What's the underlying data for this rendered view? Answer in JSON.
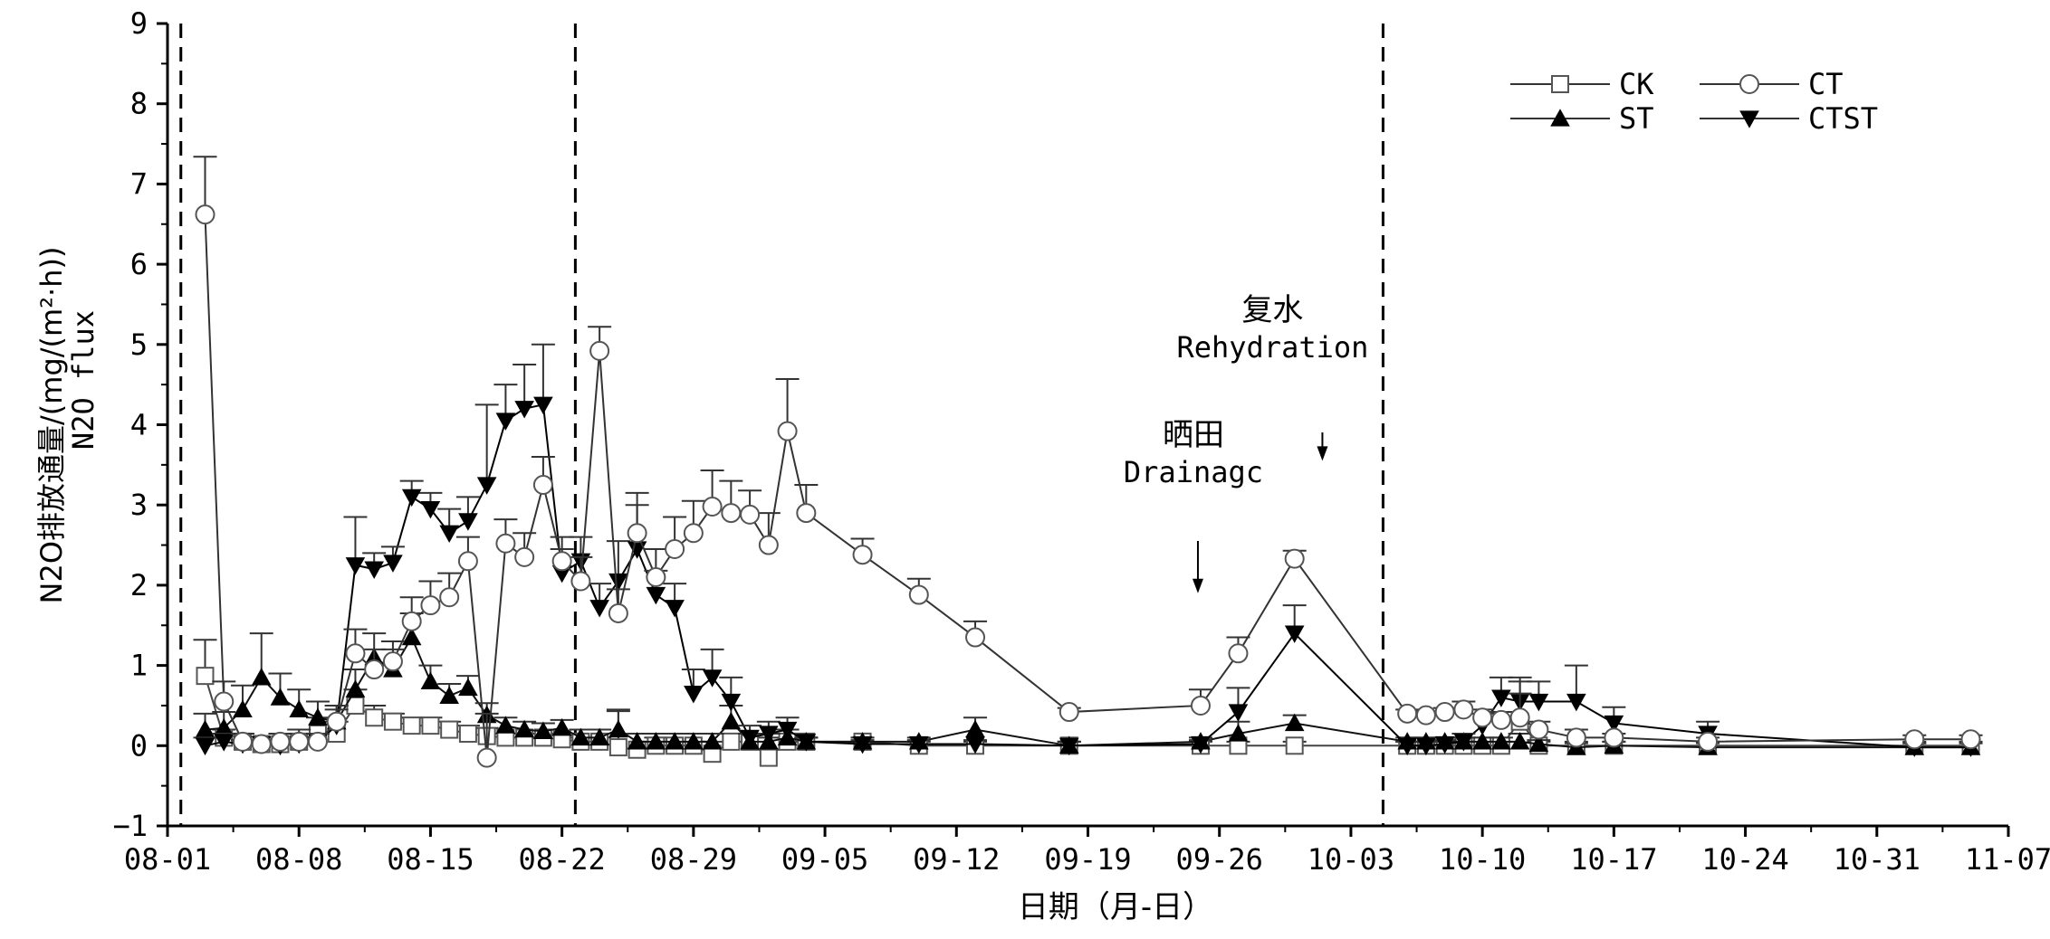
{
  "chart_data": {
    "type": "line",
    "xlabel": "日期（月-日）",
    "ylabel": "N2O排放通量/(mg/(m²·h))",
    "ylabel_en": "N2O flux",
    "xlim": [
      "08-01",
      "11-07"
    ],
    "ylim": [
      -1,
      9
    ],
    "x_ticks": [
      "08-01",
      "08-08",
      "08-15",
      "08-22",
      "08-29",
      "09-05",
      "09-12",
      "09-19",
      "09-26",
      "10-03",
      "10-10",
      "10-17",
      "10-24",
      "10-31",
      "11-07"
    ],
    "y_ticks": [
      -1,
      0,
      1,
      2,
      3,
      4,
      5,
      6,
      7,
      8,
      9
    ],
    "grid": false,
    "legend_position": "top-right",
    "vlines": [
      "08-02",
      "08-23",
      "10-05"
    ],
    "annotations": [
      {
        "text_cn": "晒田",
        "text_en": "Drainagc",
        "arrow_x": "09-25",
        "arrow_y": 1.9
      },
      {
        "text_cn": "复水",
        "text_en": "Rehydration",
        "arrow_x": "10-01",
        "arrow_y": 3.55
      }
    ],
    "series": [
      {
        "name": "CK",
        "marker": "square-open",
        "points": [
          [
            "08-03",
            0.87,
            0.45
          ],
          [
            "08-04",
            0.1,
            0.1
          ],
          [
            "08-05",
            0.05,
            0.1
          ],
          [
            "08-06",
            0.02,
            0.05
          ],
          [
            "08-07",
            0.02,
            0.05
          ],
          [
            "08-08",
            0.05,
            0.1
          ],
          [
            "08-09",
            0.15,
            0.2
          ],
          [
            "08-10",
            0.15,
            0.15
          ],
          [
            "08-11",
            0.5,
            0.2
          ],
          [
            "08-12",
            0.35,
            0.15
          ],
          [
            "08-13",
            0.3,
            0.1
          ],
          [
            "08-14",
            0.25,
            0.1
          ],
          [
            "08-15",
            0.25,
            0.1
          ],
          [
            "08-16",
            0.2,
            0.1
          ],
          [
            "08-17",
            0.15,
            0.1
          ],
          [
            "08-18",
            0.12,
            0.1
          ],
          [
            "08-19",
            0.1,
            0.05
          ],
          [
            "08-20",
            0.1,
            0.05
          ],
          [
            "08-21",
            0.1,
            0.05
          ],
          [
            "08-22",
            0.08,
            0.05
          ],
          [
            "08-23",
            0.05,
            0.05
          ],
          [
            "08-24",
            0.05,
            0.05
          ],
          [
            "08-25",
            -0.02,
            0.45
          ],
          [
            "08-26",
            -0.05,
            0.2
          ],
          [
            "08-27",
            0.0,
            0.1
          ],
          [
            "08-28",
            0.0,
            0.05
          ],
          [
            "08-29",
            0.0,
            0.05
          ],
          [
            "08-30",
            -0.1,
            0.15
          ],
          [
            "08-31",
            0.05,
            0.1
          ],
          [
            "09-01",
            0.05,
            0.1
          ],
          [
            "09-02",
            -0.15,
            0.25
          ],
          [
            "09-03",
            0.05,
            0.1
          ],
          [
            "09-04",
            0.05,
            0.05
          ],
          [
            "09-07",
            0.05,
            0.05
          ],
          [
            "09-10",
            0.0,
            0.05
          ],
          [
            "09-13",
            0.0,
            0.05
          ],
          [
            "09-18",
            0.0,
            0.05
          ],
          [
            "09-25",
            0.0,
            0.05
          ],
          [
            "09-27",
            0.0,
            0.05
          ],
          [
            "09-30",
            0.0,
            0.05
          ],
          [
            "10-06",
            0.0,
            0.05
          ],
          [
            "10-07",
            0.0,
            0.05
          ],
          [
            "10-08",
            0.0,
            0.05
          ],
          [
            "10-09",
            0.0,
            0.05
          ],
          [
            "10-10",
            0.0,
            0.05
          ],
          [
            "10-11",
            0.0,
            0.05
          ],
          [
            "10-12",
            0.3,
            0.5
          ],
          [
            "10-13",
            0.0,
            0.05
          ],
          [
            "10-15",
            0.0,
            0.05
          ],
          [
            "10-17",
            0.0,
            0.05
          ],
          [
            "10-22",
            0.0,
            0.05
          ],
          [
            "11-02",
            0.0,
            0.05
          ],
          [
            "11-05",
            0.0,
            0.05
          ]
        ]
      },
      {
        "name": "CT",
        "marker": "circle-open",
        "points": [
          [
            "08-03",
            6.62,
            0.72
          ],
          [
            "08-04",
            0.55,
            0.25
          ],
          [
            "08-05",
            0.05,
            0.1
          ],
          [
            "08-06",
            0.02,
            0.05
          ],
          [
            "08-07",
            0.05,
            0.1
          ],
          [
            "08-08",
            0.05,
            0.15
          ],
          [
            "08-09",
            0.05,
            0.1
          ],
          [
            "08-10",
            0.3,
            0.2
          ],
          [
            "08-11",
            1.15,
            0.3
          ],
          [
            "08-12",
            0.95,
            0.25
          ],
          [
            "08-13",
            1.05,
            0.25
          ],
          [
            "08-14",
            1.55,
            0.3
          ],
          [
            "08-15",
            1.75,
            0.3
          ],
          [
            "08-16",
            1.85,
            0.3
          ],
          [
            "08-17",
            2.3,
            0.3
          ],
          [
            "08-18",
            -0.15,
            0.55
          ],
          [
            "08-19",
            2.52,
            0.3
          ],
          [
            "08-20",
            2.35,
            0.3
          ],
          [
            "08-21",
            3.25,
            0.35
          ],
          [
            "08-22",
            2.3,
            0.3
          ],
          [
            "08-23",
            2.05,
            0.3
          ],
          [
            "08-24",
            4.92,
            0.3
          ],
          [
            "08-25",
            1.65,
            0.3
          ],
          [
            "08-26",
            2.65,
            0.5
          ],
          [
            "08-27",
            2.1,
            0.35
          ],
          [
            "08-28",
            2.45,
            0.4
          ],
          [
            "08-29",
            2.65,
            0.4
          ],
          [
            "08-30",
            2.98,
            0.45
          ],
          [
            "08-31",
            2.9,
            0.4
          ],
          [
            "09-01",
            2.88,
            0.3
          ],
          [
            "09-02",
            2.5,
            0.4
          ],
          [
            "09-03",
            3.92,
            0.65
          ],
          [
            "09-04",
            2.9,
            0.35
          ],
          [
            "09-07",
            2.38,
            0.2
          ],
          [
            "09-10",
            1.88,
            0.2
          ],
          [
            "09-13",
            1.35,
            0.2
          ],
          [
            "09-18",
            0.42,
            0.05
          ],
          [
            "09-25",
            0.5,
            0.2
          ],
          [
            "09-27",
            1.15,
            0.2
          ],
          [
            "09-30",
            2.33,
            0.1
          ],
          [
            "10-06",
            0.4,
            0.05
          ],
          [
            "10-07",
            0.38,
            0.05
          ],
          [
            "10-08",
            0.42,
            0.05
          ],
          [
            "10-09",
            0.45,
            0.1
          ],
          [
            "10-10",
            0.35,
            0.1
          ],
          [
            "10-11",
            0.32,
            0.1
          ],
          [
            "10-12",
            0.35,
            0.3
          ],
          [
            "10-13",
            0.2,
            0.1
          ],
          [
            "10-15",
            0.1,
            0.1
          ],
          [
            "10-17",
            0.1,
            0.05
          ],
          [
            "10-22",
            0.05,
            0.05
          ],
          [
            "11-02",
            0.08,
            0.05
          ],
          [
            "11-05",
            0.08,
            0.05
          ]
        ]
      },
      {
        "name": "ST",
        "marker": "triangle-up-filled",
        "points": [
          [
            "08-03",
            0.2,
            0.2
          ],
          [
            "08-04",
            0.22,
            0.2
          ],
          [
            "08-05",
            0.45,
            0.3
          ],
          [
            "08-06",
            0.85,
            0.55
          ],
          [
            "08-07",
            0.6,
            0.3
          ],
          [
            "08-08",
            0.45,
            0.25
          ],
          [
            "08-09",
            0.35,
            0.2
          ],
          [
            "08-10",
            0.3,
            0.2
          ],
          [
            "08-11",
            0.7,
            0.25
          ],
          [
            "08-12",
            1.1,
            0.3
          ],
          [
            "08-13",
            0.95,
            0.25
          ],
          [
            "08-14",
            1.35,
            0.3
          ],
          [
            "08-15",
            0.8,
            0.2
          ],
          [
            "08-16",
            0.62,
            0.15
          ],
          [
            "08-17",
            0.72,
            0.15
          ],
          [
            "08-18",
            0.38,
            0.15
          ],
          [
            "08-19",
            0.25,
            0.1
          ],
          [
            "08-20",
            0.2,
            0.1
          ],
          [
            "08-21",
            0.18,
            0.1
          ],
          [
            "08-22",
            0.22,
            0.1
          ],
          [
            "08-23",
            0.1,
            0.1
          ],
          [
            "08-24",
            0.1,
            0.1
          ],
          [
            "08-25",
            0.2,
            0.25
          ],
          [
            "08-26",
            0.05,
            0.1
          ],
          [
            "08-27",
            0.05,
            0.1
          ],
          [
            "08-28",
            0.05,
            0.1
          ],
          [
            "08-29",
            0.05,
            0.1
          ],
          [
            "08-30",
            0.05,
            0.1
          ],
          [
            "08-31",
            0.3,
            0.2
          ],
          [
            "09-01",
            0.05,
            0.1
          ],
          [
            "09-02",
            0.05,
            0.1
          ],
          [
            "09-03",
            0.1,
            0.1
          ],
          [
            "09-04",
            0.05,
            0.05
          ],
          [
            "09-07",
            0.05,
            0.05
          ],
          [
            "09-10",
            0.05,
            0.05
          ],
          [
            "09-13",
            0.2,
            0.15
          ],
          [
            "09-18",
            0.0,
            0.05
          ],
          [
            "09-25",
            0.05,
            0.05
          ],
          [
            "09-27",
            0.15,
            0.15
          ],
          [
            "09-30",
            0.28,
            0.1
          ],
          [
            "10-06",
            0.05,
            0.05
          ],
          [
            "10-07",
            0.05,
            0.05
          ],
          [
            "10-08",
            0.05,
            0.05
          ],
          [
            "10-09",
            0.05,
            0.05
          ],
          [
            "10-10",
            0.05,
            0.05
          ],
          [
            "10-11",
            0.05,
            0.05
          ],
          [
            "10-12",
            0.05,
            0.1
          ],
          [
            "10-13",
            0.02,
            0.05
          ],
          [
            "10-15",
            -0.02,
            0.05
          ],
          [
            "10-17",
            0.0,
            0.05
          ],
          [
            "10-22",
            -0.02,
            0.05
          ],
          [
            "11-02",
            -0.02,
            0.05
          ],
          [
            "11-05",
            -0.02,
            0.05
          ]
        ]
      },
      {
        "name": "CTST",
        "marker": "triangle-down-filled",
        "points": [
          [
            "08-03",
            0.0,
            0.1
          ],
          [
            "08-04",
            0.05,
            0.1
          ],
          [
            "08-05",
            0.02,
            0.05
          ],
          [
            "08-06",
            0.02,
            0.05
          ],
          [
            "08-07",
            0.0,
            0.05
          ],
          [
            "08-08",
            0.02,
            0.05
          ],
          [
            "08-09",
            0.05,
            0.1
          ],
          [
            "08-10",
            0.25,
            0.2
          ],
          [
            "08-11",
            2.25,
            0.6
          ],
          [
            "08-12",
            2.2,
            0.2
          ],
          [
            "08-13",
            2.28,
            0.2
          ],
          [
            "08-14",
            3.1,
            0.2
          ],
          [
            "08-15",
            2.95,
            0.2
          ],
          [
            "08-16",
            2.65,
            0.3
          ],
          [
            "08-17",
            2.8,
            0.3
          ],
          [
            "08-18",
            3.25,
            1.0
          ],
          [
            "08-19",
            4.05,
            0.45
          ],
          [
            "08-20",
            4.2,
            0.55
          ],
          [
            "08-21",
            4.25,
            0.75
          ],
          [
            "08-22",
            2.15,
            0.3
          ],
          [
            "08-23",
            2.3,
            0.3
          ],
          [
            "08-24",
            1.72,
            0.3
          ],
          [
            "08-25",
            2.05,
            0.5
          ],
          [
            "08-26",
            2.45,
            0.55
          ],
          [
            "08-27",
            1.88,
            0.3
          ],
          [
            "08-28",
            1.72,
            0.3
          ],
          [
            "08-29",
            0.65,
            0.3
          ],
          [
            "08-30",
            0.85,
            0.35
          ],
          [
            "08-31",
            0.55,
            0.3
          ],
          [
            "09-01",
            0.1,
            0.15
          ],
          [
            "09-02",
            0.15,
            0.15
          ],
          [
            "09-03",
            0.2,
            0.15
          ],
          [
            "09-04",
            0.05,
            0.05
          ],
          [
            "09-07",
            0.02,
            0.05
          ],
          [
            "09-10",
            0.02,
            0.05
          ],
          [
            "09-13",
            0.02,
            0.05
          ],
          [
            "09-18",
            0.0,
            0.05
          ],
          [
            "09-25",
            0.02,
            0.05
          ],
          [
            "09-27",
            0.42,
            0.3
          ],
          [
            "09-30",
            1.4,
            0.35
          ],
          [
            "10-06",
            0.0,
            0.05
          ],
          [
            "10-07",
            0.0,
            0.05
          ],
          [
            "10-08",
            0.02,
            0.05
          ],
          [
            "10-09",
            0.05,
            0.1
          ],
          [
            "10-10",
            0.25,
            0.15
          ],
          [
            "10-11",
            0.6,
            0.25
          ],
          [
            "10-12",
            0.55,
            0.3
          ],
          [
            "10-13",
            0.55,
            0.25
          ],
          [
            "10-15",
            0.55,
            0.45
          ],
          [
            "10-17",
            0.28,
            0.2
          ],
          [
            "10-22",
            0.15,
            0.15
          ],
          [
            "11-02",
            -0.02,
            0.05
          ],
          [
            "11-05",
            -0.02,
            0.05
          ]
        ]
      }
    ]
  }
}
